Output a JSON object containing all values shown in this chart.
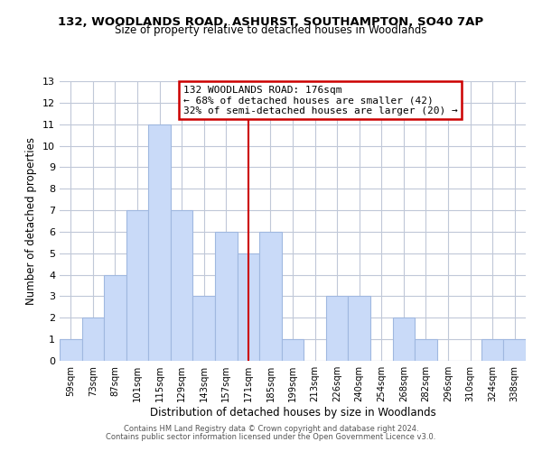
{
  "title": "132, WOODLANDS ROAD, ASHURST, SOUTHAMPTON, SO40 7AP",
  "subtitle": "Size of property relative to detached houses in Woodlands",
  "xlabel": "Distribution of detached houses by size in Woodlands",
  "ylabel": "Number of detached properties",
  "bar_labels": [
    "59sqm",
    "73sqm",
    "87sqm",
    "101sqm",
    "115sqm",
    "129sqm",
    "143sqm",
    "157sqm",
    "171sqm",
    "185sqm",
    "199sqm",
    "213sqm",
    "226sqm",
    "240sqm",
    "254sqm",
    "268sqm",
    "282sqm",
    "296sqm",
    "310sqm",
    "324sqm",
    "338sqm"
  ],
  "bar_values": [
    1,
    2,
    4,
    7,
    11,
    7,
    3,
    6,
    5,
    6,
    1,
    0,
    3,
    3,
    0,
    2,
    1,
    0,
    0,
    1,
    1
  ],
  "bar_color": "#c9daf8",
  "bar_edgecolor": "#a0b8e0",
  "vline_x_idx": 8,
  "vline_color": "#cc0000",
  "ylim": [
    0,
    13
  ],
  "yticks": [
    0,
    1,
    2,
    3,
    4,
    5,
    6,
    7,
    8,
    9,
    10,
    11,
    12,
    13
  ],
  "annotation_line1": "132 WOODLANDS ROAD: 176sqm",
  "annotation_line2": "← 68% of detached houses are smaller (42)",
  "annotation_line3": "32% of semi-detached houses are larger (20) →",
  "footer1": "Contains HM Land Registry data © Crown copyright and database right 2024.",
  "footer2": "Contains public sector information licensed under the Open Government Licence v3.0.",
  "bg_color": "#ffffff",
  "grid_color": "#c0c8d8"
}
